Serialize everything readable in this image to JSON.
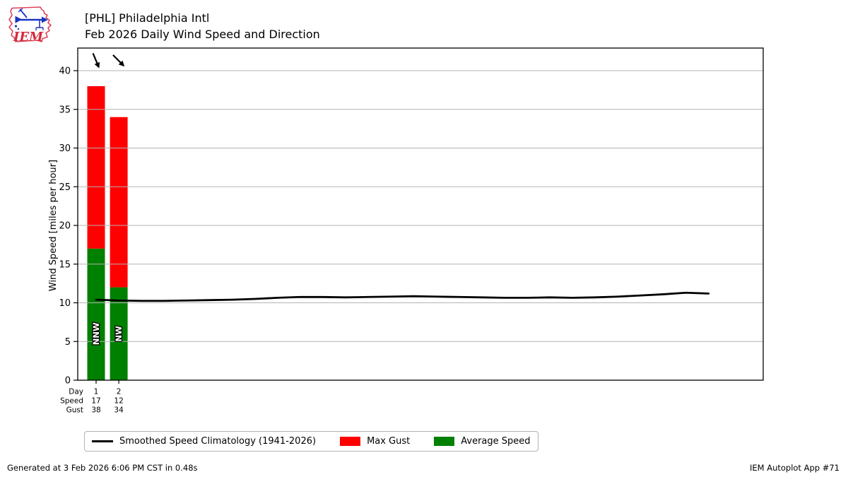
{
  "header": {
    "title_line1": "[PHL] Philadelphia Intl",
    "title_line2": "Feb 2026 Daily Wind Speed and Direction",
    "logo_text": "IEM"
  },
  "chart_data": {
    "type": "bar",
    "title": "[PHL] Philadelphia Intl",
    "subtitle": "Feb 2026 Daily Wind Speed and Direction",
    "ylabel": "Wind Speed [miles per hour]",
    "yticks": [
      0,
      5,
      10,
      15,
      20,
      25,
      30,
      35,
      40
    ],
    "ylim": [
      0,
      42.9
    ],
    "xlim_days": [
      0.2,
      30.4
    ],
    "grid": "horizontal",
    "legend_position": "below",
    "colors": {
      "max_gust": "#ff0000",
      "avg_speed": "#008000",
      "climatology": "#000000",
      "gridline": "#b3b3b3"
    },
    "days": [
      {
        "day": 1,
        "avg_speed_mph": 17,
        "max_gust_mph": 38,
        "drct": "NNW",
        "drct_deg": 337.5
      },
      {
        "day": 2,
        "avg_speed_mph": 12,
        "max_gust_mph": 34,
        "drct": "NW",
        "drct_deg": 315
      }
    ],
    "series": [
      {
        "name": "Max Gust",
        "values": [
          38,
          34
        ]
      },
      {
        "name": "Average Speed",
        "values": [
          17,
          12
        ]
      },
      {
        "name": "Smoothed Speed Climatology (1941-2026)",
        "type": "line"
      }
    ],
    "climatology": [
      {
        "day": 1,
        "mph": 10.4
      },
      {
        "day": 2,
        "mph": 10.3
      },
      {
        "day": 3,
        "mph": 10.25
      },
      {
        "day": 4,
        "mph": 10.25
      },
      {
        "day": 5,
        "mph": 10.3
      },
      {
        "day": 6,
        "mph": 10.35
      },
      {
        "day": 7,
        "mph": 10.4
      },
      {
        "day": 8,
        "mph": 10.5
      },
      {
        "day": 9,
        "mph": 10.65
      },
      {
        "day": 10,
        "mph": 10.75
      },
      {
        "day": 11,
        "mph": 10.75
      },
      {
        "day": 12,
        "mph": 10.7
      },
      {
        "day": 13,
        "mph": 10.75
      },
      {
        "day": 14,
        "mph": 10.8
      },
      {
        "day": 15,
        "mph": 10.85
      },
      {
        "day": 16,
        "mph": 10.8
      },
      {
        "day": 17,
        "mph": 10.75
      },
      {
        "day": 18,
        "mph": 10.7
      },
      {
        "day": 19,
        "mph": 10.65
      },
      {
        "day": 20,
        "mph": 10.65
      },
      {
        "day": 21,
        "mph": 10.7
      },
      {
        "day": 22,
        "mph": 10.65
      },
      {
        "day": 23,
        "mph": 10.7
      },
      {
        "day": 24,
        "mph": 10.8
      },
      {
        "day": 25,
        "mph": 10.95
      },
      {
        "day": 26,
        "mph": 11.1
      },
      {
        "day": 27,
        "mph": 11.3
      },
      {
        "day": 28,
        "mph": 11.2
      }
    ],
    "xaxis_rows": [
      {
        "label": "Day",
        "values": [
          "1",
          "2"
        ]
      },
      {
        "label": "Speed",
        "values": [
          "17",
          "12"
        ]
      },
      {
        "label": "Gust",
        "values": [
          "38",
          "34"
        ]
      }
    ]
  },
  "legend": {
    "items": [
      {
        "label": "Smoothed Speed Climatology (1941-2026)",
        "swatch": "line",
        "color": "#000000"
      },
      {
        "label": "Max Gust",
        "swatch": "rect",
        "color": "#ff0000"
      },
      {
        "label": "Average Speed",
        "swatch": "rect",
        "color": "#008000"
      }
    ]
  },
  "footer": {
    "left": "Generated at 3 Feb 2026 6:06 PM CST in 0.48s",
    "right": "IEM Autoplot App #71"
  }
}
